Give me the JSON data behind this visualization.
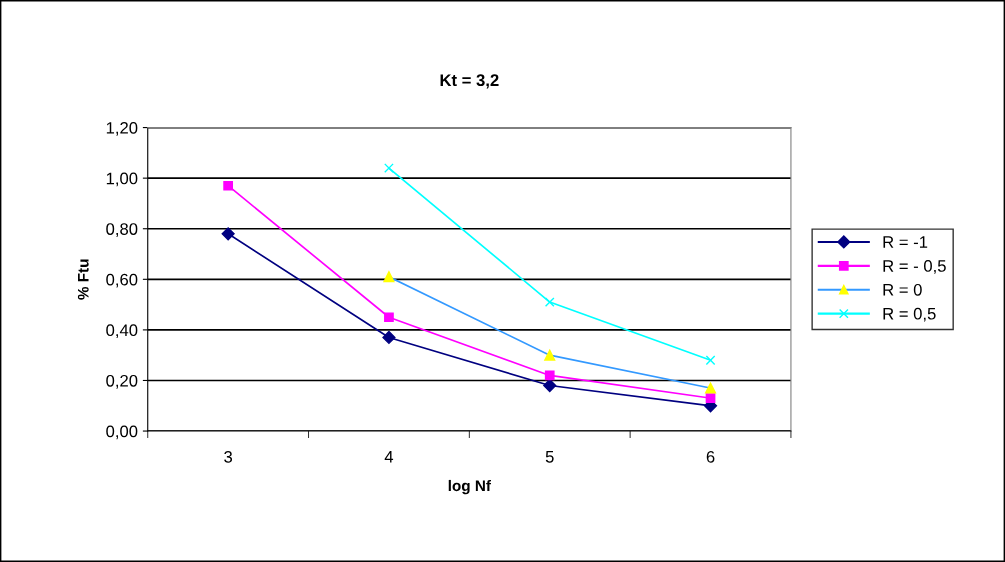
{
  "chart_data": {
    "type": "line",
    "title": "Kt = 3,2",
    "xlabel": "log Nf",
    "ylabel": "% Ftu",
    "categories": [
      "3",
      "4",
      "5",
      "6"
    ],
    "series": [
      {
        "name": "R = -1",
        "color": "#000080",
        "marker": "diamond",
        "values": [
          0.78,
          0.37,
          0.18,
          0.1
        ]
      },
      {
        "name": "R = - 0,5",
        "color": "#ff00ff",
        "marker": "square",
        "values": [
          0.97,
          0.45,
          0.22,
          0.13
        ]
      },
      {
        "name": "R = 0",
        "color": "#3399ff",
        "colors": [
          "#ffff00",
          "#ffff00",
          "#ffff00",
          "#ffff00"
        ],
        "marker": "triangle",
        "values": [
          null,
          0.61,
          0.3,
          0.17
        ]
      },
      {
        "name": "R = 0,5",
        "color": "#00ffff",
        "marker": "cross",
        "values": [
          null,
          1.04,
          0.51,
          0.28
        ]
      }
    ],
    "ylim": [
      0,
      1.2
    ],
    "yticks": [
      {
        "value": 0,
        "label": "0,00"
      },
      {
        "value": 0.2,
        "label": "0,20"
      },
      {
        "value": 0.4,
        "label": "0,40"
      },
      {
        "value": 0.6,
        "label": "0,60"
      },
      {
        "value": 0.8,
        "label": "0,80"
      },
      {
        "value": 1.0,
        "label": "1,00"
      },
      {
        "value": 1.2,
        "label": "1,20"
      }
    ],
    "grid": "y",
    "legend": "right",
    "line_style": "solid"
  }
}
